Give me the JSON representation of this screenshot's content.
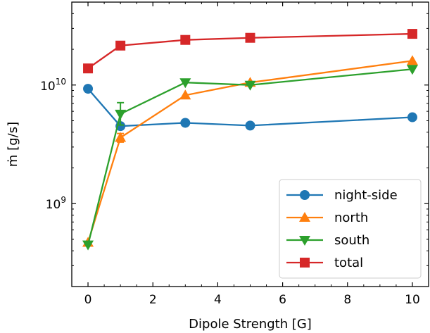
{
  "chart_data": {
    "type": "line",
    "xlabel": "Dipole Strength [G]",
    "ylabel": "ṁ [g/s]",
    "x": [
      0,
      1,
      3,
      5,
      10
    ],
    "xlim": [
      -0.5,
      10.5
    ],
    "ylim": [
      200000000.0,
      50000000000.0
    ],
    "yscale": "log",
    "xticks": [
      0,
      2,
      4,
      6,
      8,
      10
    ],
    "yticks": [
      1000000000.0,
      10000000000.0
    ],
    "ytick_labels": [
      "10^9",
      "10^10"
    ],
    "grid": false,
    "legend_position": "lower-right",
    "series": [
      {
        "name": "night-side",
        "color": "#1f77b4",
        "marker": "circle",
        "values": [
          9300000000.0,
          4500000000.0,
          4800000000.0,
          4550000000.0,
          5350000000.0
        ]
      },
      {
        "name": "north",
        "color": "#ff7f0e",
        "marker": "triangle-up",
        "values": [
          470000000.0,
          3600000000.0,
          8200000000.0,
          10500000000.0,
          16000000000.0
        ],
        "errors": [
          null,
          [
            3300000000.0,
            3900000000.0
          ],
          null,
          null,
          null
        ]
      },
      {
        "name": "south",
        "color": "#2ca02c",
        "marker": "triangle-down",
        "values": [
          450000000.0,
          5700000000.0,
          10500000000.0,
          10000000000.0,
          13600000000.0
        ],
        "errors": [
          null,
          [
            4600000000.0,
            7100000000.0
          ],
          null,
          null,
          null
        ]
      },
      {
        "name": "total",
        "color": "#d62728",
        "marker": "square",
        "values": [
          13800000000.0,
          21500000000.0,
          24000000000.0,
          25000000000.0,
          27000000000.0
        ]
      }
    ]
  }
}
